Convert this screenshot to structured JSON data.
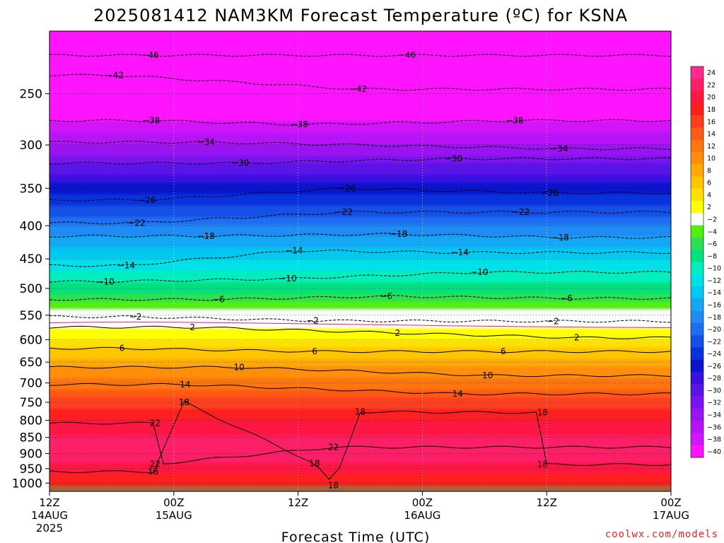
{
  "chart_data": {
    "type": "heatmap",
    "title": "2025081412 NAM3KM Forecast Temperature (ºC) for KSNA",
    "xlabel": "Forecast Time (UTC)",
    "ylabel": "",
    "source": "coolwx.com/models",
    "x_range_hours": [
      0,
      60
    ],
    "y_range_hpa": [
      1030,
      200
    ],
    "y_scale": "log",
    "x_ticks": [
      {
        "hour": 0,
        "lines": [
          "12Z",
          "14AUG",
          "2025"
        ]
      },
      {
        "hour": 12,
        "lines": [
          "00Z",
          "15AUG"
        ]
      },
      {
        "hour": 24,
        "lines": [
          "12Z"
        ]
      },
      {
        "hour": 36,
        "lines": [
          "00Z",
          "16AUG"
        ]
      },
      {
        "hour": 48,
        "lines": [
          "12Z"
        ]
      },
      {
        "hour": 60,
        "lines": [
          "00Z",
          "17AUG"
        ]
      }
    ],
    "y_ticks": [
      "250",
      "300",
      "350",
      "400",
      "450",
      "500",
      "550",
      "600",
      "650",
      "700",
      "750",
      "800",
      "850",
      "900",
      "950",
      "1000"
    ],
    "colorbar_labels": [
      "24",
      "22",
      "20",
      "18",
      "16",
      "14",
      "12",
      "10",
      "8",
      "6",
      "4",
      "2",
      "-2",
      "-4",
      "-6",
      "-8",
      "-10",
      "-12",
      "-14",
      "-16",
      "-18",
      "-20",
      "-22",
      "-24",
      "-26",
      "-28",
      "-30",
      "-32",
      "-34",
      "-36",
      "-38",
      "-40"
    ],
    "colorbar_colors": [
      "#ff2a8c",
      "#ff1f68",
      "#ff1744",
      "#ff1f1f",
      "#ff4020",
      "#ff5a14",
      "#ff760e",
      "#ff8e0a",
      "#ffaa06",
      "#ffc600",
      "#ffe000",
      "#ffff00",
      "#ffffff",
      "#55ee14",
      "#2ee050",
      "#00e080",
      "#00eebe",
      "#00e0e8",
      "#00c8f0",
      "#14a8f4",
      "#1e8cf4",
      "#1e6ef4",
      "#1450e6",
      "#0a32dc",
      "#0a14cc",
      "#3a10e0",
      "#5a14e6",
      "#7a14ee",
      "#9a14f2",
      "#b614f6",
      "#d214fa",
      "#ff14ff"
    ],
    "ground_color": "#a4643c",
    "temperature_profile": {
      "pressure_hpa": [
        210,
        250,
        300,
        350,
        400,
        450,
        500,
        550,
        600,
        650,
        700,
        750,
        800,
        850,
        900,
        950,
        1000,
        1030
      ],
      "temp_c": [
        -48,
        -43,
        -35,
        -26,
        -19,
        -13,
        -8,
        -2,
        3,
        8,
        12,
        16,
        19,
        21,
        22,
        20,
        18,
        17
      ]
    },
    "contour_labels": [
      {
        "t": -46,
        "text": "-46",
        "h": 9.7,
        "p": 218
      },
      {
        "t": -46,
        "text": "-46",
        "h": 34.5,
        "p": 218
      },
      {
        "t": -42,
        "text": "-42",
        "h": 6.3,
        "p": 234
      },
      {
        "t": -42,
        "text": "-42",
        "h": 29.8,
        "p": 246
      },
      {
        "t": -38,
        "text": "-38",
        "h": 9.8,
        "p": 275
      },
      {
        "t": -38,
        "text": "-38",
        "h": 24.1,
        "p": 279
      },
      {
        "t": -38,
        "text": "-38",
        "h": 44.9,
        "p": 275
      },
      {
        "t": -34,
        "text": "-34",
        "h": 15.1,
        "p": 297
      },
      {
        "t": -34,
        "text": "-34",
        "h": 49.2,
        "p": 304
      },
      {
        "t": -30,
        "text": "-30",
        "h": 18.4,
        "p": 320
      },
      {
        "t": -30,
        "text": "-30",
        "h": 39.0,
        "p": 315
      },
      {
        "t": -26,
        "text": "-26",
        "h": 9.4,
        "p": 365
      },
      {
        "t": -26,
        "text": "-26",
        "h": 28.7,
        "p": 350
      },
      {
        "t": -26,
        "text": "-26",
        "h": 48.3,
        "p": 356
      },
      {
        "t": -22,
        "text": "-22",
        "h": 8.4,
        "p": 396
      },
      {
        "t": -22,
        "text": "-22",
        "h": 28.4,
        "p": 381
      },
      {
        "t": -22,
        "text": "-22",
        "h": 45.5,
        "p": 381
      },
      {
        "t": -18,
        "text": "-18",
        "h": 15.1,
        "p": 415
      },
      {
        "t": -18,
        "text": "-18",
        "h": 33.7,
        "p": 412
      },
      {
        "t": -18,
        "text": "-18",
        "h": 49.3,
        "p": 417
      },
      {
        "t": -14,
        "text": "-14",
        "h": 23.6,
        "p": 437
      },
      {
        "t": -14,
        "text": "-14",
        "h": 39.6,
        "p": 440
      },
      {
        "t": -14,
        "text": "-14",
        "h": 7.4,
        "p": 461
      },
      {
        "t": -10,
        "text": "-10",
        "h": 5.4,
        "p": 488
      },
      {
        "t": -10,
        "text": "-10",
        "h": 23.0,
        "p": 483
      },
      {
        "t": -10,
        "text": "-10",
        "h": 41.5,
        "p": 472
      },
      {
        "t": -6,
        "text": "-6",
        "h": 16.3,
        "p": 520
      },
      {
        "t": -6,
        "text": "-6",
        "h": 32.5,
        "p": 514
      },
      {
        "t": -6,
        "text": "-6",
        "h": 49.9,
        "p": 518
      },
      {
        "t": -2,
        "text": "-2",
        "h": 8.3,
        "p": 553
      },
      {
        "t": -2,
        "text": "-2",
        "h": 25.4,
        "p": 561
      },
      {
        "t": -2,
        "text": "-2",
        "h": 48.6,
        "p": 562
      },
      {
        "t": 2,
        "text": "2",
        "h": 13.8,
        "p": 574
      },
      {
        "t": 2,
        "text": "2",
        "h": 33.6,
        "p": 586
      },
      {
        "t": 2,
        "text": "2",
        "h": 50.9,
        "p": 596
      },
      {
        "t": 6,
        "text": "6",
        "h": 7.0,
        "p": 619
      },
      {
        "t": 6,
        "text": "6",
        "h": 25.6,
        "p": 626
      },
      {
        "t": 6,
        "text": "6",
        "h": 43.8,
        "p": 626
      },
      {
        "t": 10,
        "text": "10",
        "h": 18.3,
        "p": 662
      },
      {
        "t": 10,
        "text": "10",
        "h": 42.3,
        "p": 682
      },
      {
        "t": 14,
        "text": "14",
        "h": 13.1,
        "p": 704
      },
      {
        "t": 14,
        "text": "14",
        "h": 39.4,
        "p": 728
      },
      {
        "t": 18,
        "text": "18",
        "h": 13.0,
        "p": 750
      },
      {
        "t": 18,
        "text": "18",
        "h": 30.0,
        "p": 776
      },
      {
        "t": 18,
        "text": "18",
        "h": 47.6,
        "p": 778
      },
      {
        "t": 22,
        "text": "22",
        "h": 10.2,
        "p": 808
      },
      {
        "t": 22,
        "text": "22",
        "h": 27.4,
        "p": 880
      },
      {
        "t": 22,
        "text": "22",
        "h": 10.2,
        "p": 935
      },
      {
        "t": 18,
        "text": "18",
        "h": 25.6,
        "p": 932
      },
      {
        "t": 18,
        "text": "18",
        "h": 10.0,
        "p": 960
      },
      {
        "t": 18,
        "text": "18",
        "h": 47.6,
        "p": 936
      },
      {
        "t": 18,
        "text": "18",
        "h": 27.4,
        "p": 1008
      }
    ]
  }
}
